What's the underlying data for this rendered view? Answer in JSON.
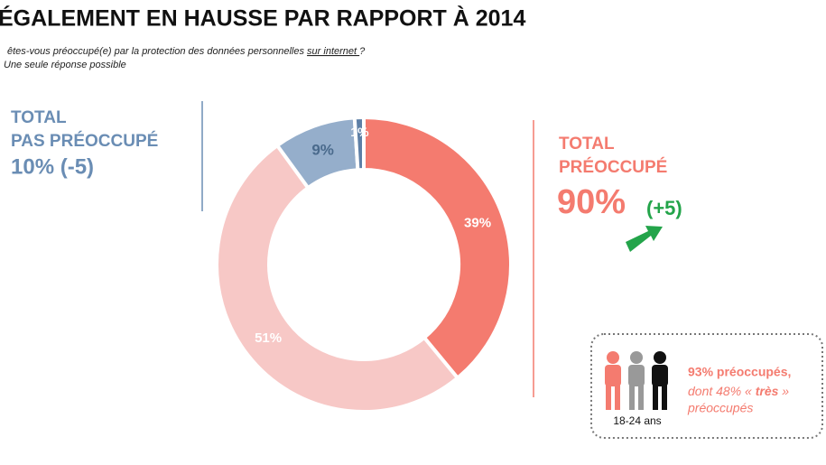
{
  "chart_data": {
    "type": "pie",
    "donut": true,
    "title": "ÉGALEMENT EN HAUSSE PAR RAPPORT À 2014",
    "question": {
      "before": "êtes-vous préoccupé(e) par la protection des données personnelles ",
      "underlined": "sur internet ",
      "after": "?"
    },
    "note": "Une seule réponse possible",
    "values": [
      39,
      51,
      9,
      1
    ],
    "value_labels": [
      "39%",
      "51%",
      "9%",
      "1%"
    ],
    "colors": [
      "#f47b6f",
      "#f7c8c6",
      "#95aecb",
      "#5d7fa6"
    ],
    "label_colors": [
      "#ffffff",
      "#ffffff",
      "#4a6a8c",
      "#ffffff"
    ],
    "left_total": {
      "line1": "TOTAL",
      "line2": "PAS PRÉOCCUPÉ",
      "value": "10% (-5)"
    },
    "right_total": {
      "line1": "TOTAL",
      "line2": "PRÉOCCUPÉ",
      "value": "90%",
      "change": "(+5)"
    },
    "callout": {
      "line1": "93% préoccupés,",
      "line2a": "dont 48% « ",
      "line2b": "très",
      "line2c": " »",
      "line3": "préoccupés",
      "age": "18-24 ans"
    }
  }
}
